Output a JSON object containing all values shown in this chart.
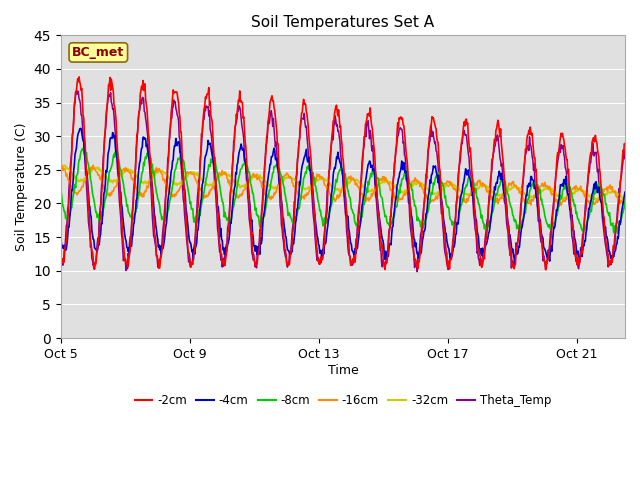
{
  "title": "Soil Temperatures Set A",
  "xlabel": "Time",
  "ylabel": "Soil Temperature (C)",
  "ylim": [
    0,
    45
  ],
  "xtick_labels": [
    "Oct 5",
    "Oct 9",
    "Oct 13",
    "Oct 17",
    "Oct 21"
  ],
  "xtick_positions": [
    0,
    4,
    8,
    12,
    16
  ],
  "annotation": "BC_met",
  "annotation_color": "#8B0000",
  "annotation_bg": "#FFFF99",
  "colors": {
    "2cm": "#FF0000",
    "4cm": "#0000CC",
    "8cm": "#00CC00",
    "16cm": "#FF8C00",
    "32cm": "#CCCC00",
    "Theta_Temp": "#8B008B"
  },
  "line_labels": [
    "-2cm",
    "-4cm",
    "-8cm",
    "-16cm",
    "-32cm",
    "Theta_Temp"
  ],
  "plot_bg": "#E0E0E0",
  "fig_bg": "#FFFFFF",
  "total_days": 18,
  "xlim": [
    0,
    17.5
  ]
}
